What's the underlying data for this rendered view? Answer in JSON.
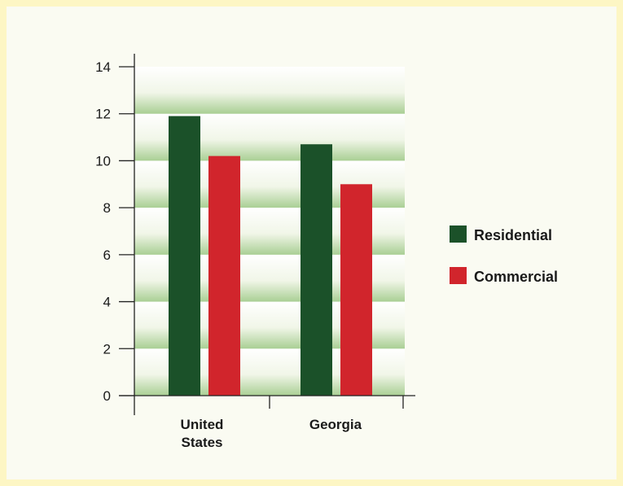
{
  "chart_data": {
    "type": "bar",
    "categories": [
      "United States",
      "Georgia"
    ],
    "category_label_lines": [
      [
        "United",
        "States"
      ],
      [
        "Georgia"
      ]
    ],
    "series": [
      {
        "name": "Residential",
        "color": "#1b5129",
        "values": [
          11.9,
          10.7
        ]
      },
      {
        "name": "Commercial",
        "color": "#d1252c",
        "values": [
          10.2,
          9.0
        ]
      }
    ],
    "ylim": [
      0,
      14
    ],
    "yticks": [
      0,
      2,
      4,
      6,
      8,
      10,
      12,
      14
    ],
    "title": "",
    "xlabel": "",
    "ylabel": "",
    "grid": "horizontal bands",
    "legend_position": "right"
  }
}
